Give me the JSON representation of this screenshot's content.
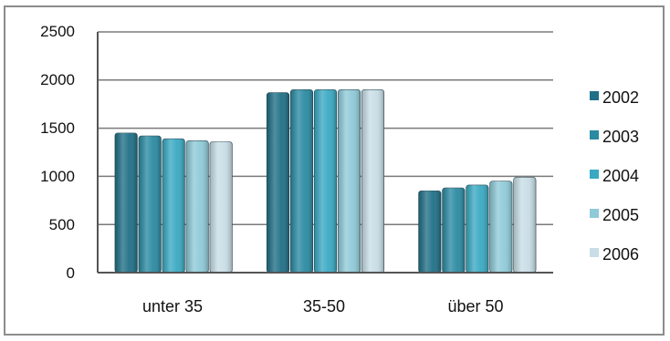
{
  "chart_data": {
    "type": "bar",
    "categories": [
      "unter 35",
      "35-50",
      "über 50"
    ],
    "series": [
      {
        "name": "2002",
        "values": [
          1450,
          1870,
          850
        ],
        "color": "#1f6f86"
      },
      {
        "name": "2003",
        "values": [
          1420,
          1900,
          880
        ],
        "color": "#2a8aa2"
      },
      {
        "name": "2004",
        "values": [
          1390,
          1900,
          910
        ],
        "color": "#39a9c2"
      },
      {
        "name": "2005",
        "values": [
          1370,
          1900,
          950
        ],
        "color": "#8fcad8"
      },
      {
        "name": "2006",
        "values": [
          1360,
          1900,
          990
        ],
        "color": "#c8dde6"
      }
    ],
    "y_ticks": [
      "0",
      "500",
      "1000",
      "1500",
      "2000",
      "2500"
    ],
    "ylim": [
      0,
      2500
    ],
    "grid": true,
    "legend_position": "right",
    "title": "",
    "xlabel": "",
    "ylabel": ""
  }
}
